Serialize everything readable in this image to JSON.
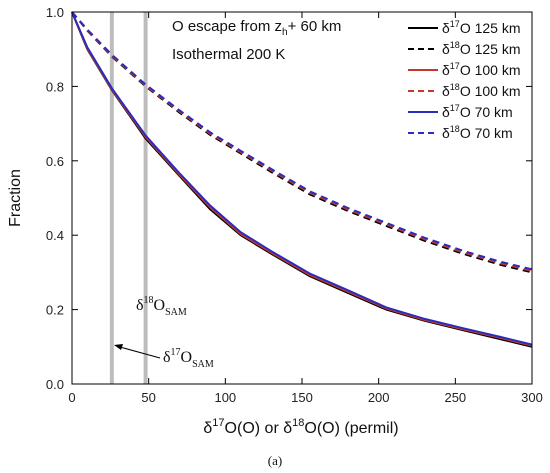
{
  "chart_data": {
    "type": "line",
    "xlabel": {
      "pre": "δ",
      "sup1": "17",
      "mid": "O(O) or δ",
      "sup2": "18",
      "post": "O(O) (permil)"
    },
    "ylabel": "Fraction",
    "xlim": [
      0,
      300
    ],
    "ylim": [
      0,
      1.0
    ],
    "x_ticks": [
      "0",
      "50",
      "100",
      "150",
      "200",
      "250",
      "300"
    ],
    "y_ticks": [
      "0.0",
      "0.2",
      "0.4",
      "0.6",
      "0.8",
      "1.0"
    ],
    "x_tick_values": [
      0,
      50,
      100,
      150,
      200,
      250,
      300
    ],
    "y_tick_values": [
      0,
      0.2,
      0.4,
      0.6,
      0.8,
      1.0
    ],
    "grid": false,
    "legend_position": "top-right",
    "annotations": {
      "title_line1_pre": "O escape from z",
      "title_line1_sub": "h",
      "title_line1_post": "+ 60 km",
      "title_line2": "Isothermal 200 K",
      "d18_sam": {
        "pre": "δ",
        "sup": "18",
        "main": "O",
        "sub": "SAM"
      },
      "d17_sam": {
        "pre": "δ",
        "sup": "17",
        "main": "O",
        "sub": "SAM"
      }
    },
    "vertical_markers": [
      {
        "x": 26,
        "color": "#bdbdbd"
      },
      {
        "x": 48,
        "color": "#bdbdbd"
      }
    ],
    "series": [
      {
        "name": {
          "pre": "δ",
          "sup": "17",
          "post": "O 125 km"
        },
        "color": "#000000",
        "dash": "solid",
        "x": [
          0,
          10,
          26,
          48,
          70,
          90,
          110,
          130,
          155,
          180,
          205,
          230,
          255,
          280,
          300
        ],
        "y": [
          1.0,
          0.9,
          0.79,
          0.66,
          0.56,
          0.47,
          0.4,
          0.35,
          0.29,
          0.245,
          0.2,
          0.17,
          0.145,
          0.12,
          0.1
        ]
      },
      {
        "name": {
          "pre": "δ",
          "sup": "18",
          "post": "O 125 km"
        },
        "color": "#000000",
        "dash": "dashed",
        "x": [
          0,
          10,
          26,
          48,
          70,
          90,
          110,
          130,
          155,
          180,
          205,
          230,
          255,
          280,
          300
        ],
        "y": [
          1.0,
          0.95,
          0.88,
          0.8,
          0.73,
          0.67,
          0.62,
          0.57,
          0.51,
          0.465,
          0.425,
          0.385,
          0.35,
          0.32,
          0.3
        ]
      },
      {
        "name": {
          "pre": "δ",
          "sup": "17",
          "post": "O 100 km"
        },
        "color": "#c0392b",
        "dash": "solid",
        "x": [
          0,
          10,
          26,
          48,
          70,
          90,
          110,
          130,
          155,
          180,
          205,
          230,
          255,
          280,
          300
        ],
        "y": [
          1.0,
          0.902,
          0.792,
          0.664,
          0.563,
          0.475,
          0.403,
          0.353,
          0.293,
          0.248,
          0.203,
          0.172,
          0.147,
          0.123,
          0.103
        ]
      },
      {
        "name": {
          "pre": "δ",
          "sup": "18",
          "post": "O 100 km"
        },
        "color": "#c0392b",
        "dash": "dashed",
        "x": [
          0,
          10,
          26,
          48,
          70,
          90,
          110,
          130,
          155,
          180,
          205,
          230,
          255,
          280,
          300
        ],
        "y": [
          1.0,
          0.951,
          0.882,
          0.802,
          0.733,
          0.673,
          0.623,
          0.574,
          0.514,
          0.469,
          0.429,
          0.389,
          0.354,
          0.324,
          0.304
        ]
      },
      {
        "name": {
          "pre": "δ",
          "sup": "17",
          "post": "O 70 km"
        },
        "color": "#2b2bbf",
        "dash": "solid",
        "x": [
          0,
          10,
          26,
          48,
          70,
          90,
          110,
          130,
          155,
          180,
          205,
          230,
          255,
          280,
          300
        ],
        "y": [
          1.0,
          0.905,
          0.795,
          0.668,
          0.567,
          0.48,
          0.408,
          0.357,
          0.297,
          0.252,
          0.206,
          0.175,
          0.15,
          0.126,
          0.106
        ]
      },
      {
        "name": {
          "pre": "δ",
          "sup": "18",
          "post": "O 70 km"
        },
        "color": "#2b2bbf",
        "dash": "dashed",
        "x": [
          0,
          10,
          26,
          48,
          70,
          90,
          110,
          130,
          155,
          180,
          205,
          230,
          255,
          280,
          300
        ],
        "y": [
          1.0,
          0.953,
          0.885,
          0.805,
          0.736,
          0.677,
          0.627,
          0.578,
          0.518,
          0.473,
          0.433,
          0.393,
          0.358,
          0.328,
          0.308
        ]
      }
    ]
  },
  "caption": "(a)"
}
